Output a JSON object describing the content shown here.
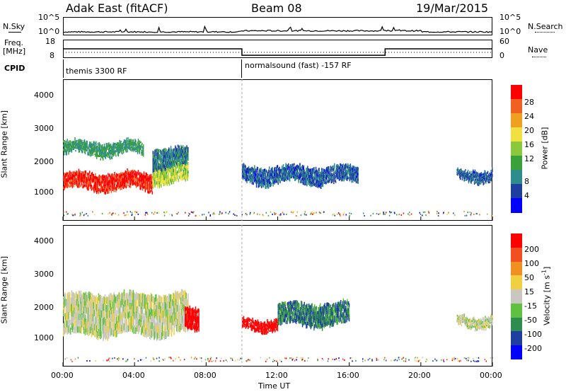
{
  "header": {
    "station": "Adak East (fitACF)",
    "beam": "Beam 08",
    "date": "19/Mar/2015"
  },
  "strips": {
    "nsky_label": "N.Sky",
    "nsky_ticks": [
      "10^5",
      "10^0"
    ],
    "nsearch_label": "N.Search",
    "nsearch_ticks": [
      "10^5",
      "10^0"
    ],
    "freq_label": "Freq.",
    "freq_unit": "[MHz]",
    "freq_ticks": [
      "18",
      "8"
    ],
    "nave_label": "Nave",
    "nave_ticks": [
      "60",
      "0"
    ],
    "cpid_label": "CPID",
    "cpid_segments": [
      "themis 3300 RF",
      "normalsound (fast) -157 RF"
    ]
  },
  "power_panel": {
    "ylabel": "Slant Range [km]",
    "yticks": [
      "4000",
      "3000",
      "2000",
      "1000"
    ],
    "colorbar_label": "Power [dB]",
    "colorbar_ticks": [
      "28",
      "24",
      "20",
      "16",
      "12",
      "8",
      "4"
    ],
    "colors": [
      "#0000ff",
      "#1e3fa0",
      "#2e8c8c",
      "#3aa03a",
      "#8cc83c",
      "#f0e040",
      "#f0a020",
      "#f06020",
      "#ff0000"
    ]
  },
  "velocity_panel": {
    "ylabel": "Slant Range [km]",
    "yticks": [
      "4000",
      "3000",
      "2000",
      "1000"
    ],
    "colorbar_label": "Velocity [m s",
    "colorbar_label_sup": "-1",
    "colorbar_label_end": "]",
    "colorbar_ticks": [
      "200",
      "100",
      "50",
      "15",
      "-15",
      "-50",
      "-100",
      "-200"
    ],
    "colors": [
      "#0000ff",
      "#1e3fa0",
      "#2e8c50",
      "#60c040",
      "#c8c8c0",
      "#f0d040",
      "#f09020",
      "#f05020",
      "#ff0000"
    ]
  },
  "xaxis": {
    "ticks": [
      "00:00",
      "04:00",
      "08:00",
      "12:00",
      "16:00",
      "20:00",
      "00:00"
    ],
    "label": "Time UT"
  },
  "chart_data": [
    {
      "type": "line",
      "series": [
        {
          "name": "N.Sky",
          "x": [
            "00:00",
            "10:00",
            "24:00"
          ],
          "y_log10": [
            0.2,
            0.5,
            0.2
          ]
        }
      ],
      "ylim_log10": [
        0,
        5
      ]
    },
    {
      "type": "line",
      "series": [
        {
          "name": "Freq.",
          "x": [
            "00:00",
            "10:00",
            "10:00",
            "18:00",
            "18:00",
            "24:00"
          ],
          "y": [
            13,
            13,
            9.5,
            9.5,
            13,
            13
          ]
        }
      ],
      "ylim": [
        8,
        18
      ]
    },
    {
      "type": "heatmap",
      "title": "Power [dB]",
      "xrange_hours": [
        0,
        24
      ],
      "ylim": [
        0,
        4500
      ],
      "clim": [
        0,
        30
      ],
      "regions": [
        {
          "t0": 0.0,
          "t1": 5.0,
          "r0": 1000,
          "r1": 1500,
          "level": 28
        },
        {
          "t0": 5.0,
          "t1": 7.0,
          "r0": 1200,
          "r1": 1800,
          "level": 16
        },
        {
          "t0": 0.0,
          "t1": 4.5,
          "r0": 2100,
          "r1": 2500,
          "level": 10
        },
        {
          "t0": 5.0,
          "t1": 7.0,
          "r0": 1700,
          "r1": 2300,
          "level": 8
        },
        {
          "t0": 10.0,
          "t1": 16.5,
          "r0": 1200,
          "r1": 1700,
          "level": 6
        },
        {
          "t0": 22.0,
          "t1": 24.0,
          "r0": 1300,
          "r1": 1600,
          "level": 6
        }
      ]
    },
    {
      "type": "heatmap",
      "title": "Velocity [m s-1]",
      "xrange_hours": [
        0,
        24
      ],
      "ylim": [
        0,
        4500
      ],
      "clim": [
        -200,
        200
      ],
      "regions": [
        {
          "t0": 0.0,
          "t1": 7.0,
          "r0": 1000,
          "r1": 2300,
          "level": 0
        },
        {
          "t0": 6.8,
          "t1": 7.6,
          "r0": 1100,
          "r1": 1800,
          "level": 200
        },
        {
          "t0": 10.0,
          "t1": 12.0,
          "r0": 1200,
          "r1": 1500,
          "level": 200
        },
        {
          "t0": 12.0,
          "t1": 16.0,
          "r0": 1300,
          "r1": 2000,
          "level": -100
        },
        {
          "t0": 22.0,
          "t1": 24.0,
          "r0": 1300,
          "r1": 1600,
          "level": 0
        }
      ]
    }
  ]
}
